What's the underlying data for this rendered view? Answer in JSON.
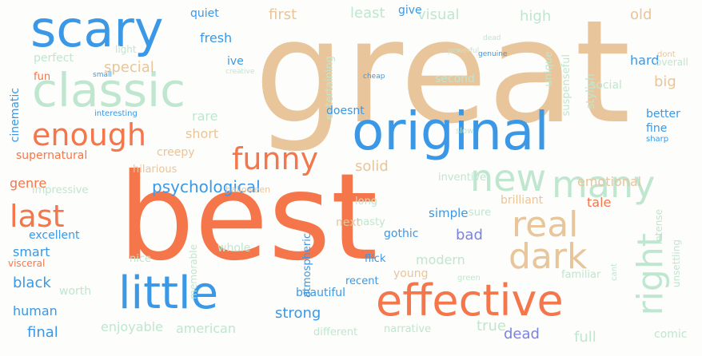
{
  "palette": {
    "tan": "#e8c59a",
    "orange": "#f4764a",
    "blue": "#3a98e6",
    "mint": "#bfe6cf",
    "periwinkle": "#7a83e0"
  },
  "words": [
    {
      "text": "great",
      "color": "tan",
      "weight": 1.0
    },
    {
      "text": "best",
      "color": "orange",
      "weight": 0.95
    },
    {
      "text": "original",
      "color": "blue",
      "weight": 0.55
    },
    {
      "text": "scary",
      "color": "blue",
      "weight": 0.5
    },
    {
      "text": "classic",
      "color": "mint",
      "weight": 0.5
    },
    {
      "text": "little",
      "color": "blue",
      "weight": 0.5
    },
    {
      "text": "effective",
      "color": "orange",
      "weight": 0.5
    },
    {
      "text": "new",
      "color": "mint",
      "weight": 0.4
    },
    {
      "text": "many",
      "color": "mint",
      "weight": 0.4
    },
    {
      "text": "real",
      "color": "tan",
      "weight": 0.4
    },
    {
      "text": "dark",
      "color": "tan",
      "weight": 0.4
    },
    {
      "text": "right",
      "color": "mint",
      "weight": 0.4
    },
    {
      "text": "enough",
      "color": "orange",
      "weight": 0.35
    },
    {
      "text": "funny",
      "color": "orange",
      "weight": 0.35
    },
    {
      "text": "last",
      "color": "orange",
      "weight": 0.35
    },
    {
      "text": "psychological",
      "color": "blue",
      "weight": 0.2
    },
    {
      "text": "first",
      "color": "tan",
      "weight": 0.15
    },
    {
      "text": "least",
      "color": "mint",
      "weight": 0.15
    },
    {
      "text": "visual",
      "color": "mint",
      "weight": 0.15
    },
    {
      "text": "high",
      "color": "mint",
      "weight": 0.15
    },
    {
      "text": "old",
      "color": "tan",
      "weight": 0.15
    },
    {
      "text": "hard",
      "color": "blue",
      "weight": 0.12
    },
    {
      "text": "fresh",
      "color": "blue",
      "weight": 0.12
    },
    {
      "text": "perfect",
      "color": "mint",
      "weight": 0.12
    },
    {
      "text": "special",
      "color": "tan",
      "weight": 0.15
    },
    {
      "text": "fun",
      "color": "orange",
      "weight": 0.1
    },
    {
      "text": "cinematic",
      "color": "blue",
      "weight": 0.1
    },
    {
      "text": "quiet",
      "color": "blue",
      "weight": 0.1
    },
    {
      "text": "give",
      "color": "blue",
      "weight": 0.1
    },
    {
      "text": "ive",
      "color": "blue",
      "weight": 0.1
    },
    {
      "text": "light",
      "color": "mint",
      "weight": 0.08
    },
    {
      "text": "entertaining",
      "color": "mint",
      "weight": 0.1
    },
    {
      "text": "second",
      "color": "mint",
      "weight": 0.1
    },
    {
      "text": "unique",
      "color": "mint",
      "weight": 0.1
    },
    {
      "text": "suspenseful",
      "color": "mint",
      "weight": 0.1
    },
    {
      "text": "stylish",
      "color": "mint",
      "weight": 0.1
    },
    {
      "text": "social",
      "color": "mint",
      "weight": 0.1
    },
    {
      "text": "big",
      "color": "tan",
      "weight": 0.12
    },
    {
      "text": "better",
      "color": "blue",
      "weight": 0.1
    },
    {
      "text": "fine",
      "color": "blue",
      "weight": 0.1
    },
    {
      "text": "sharp",
      "color": "blue",
      "weight": 0.08
    },
    {
      "text": "rare",
      "color": "mint",
      "weight": 0.12
    },
    {
      "text": "short",
      "color": "tan",
      "weight": 0.12
    },
    {
      "text": "creepy",
      "color": "tan",
      "weight": 0.1
    },
    {
      "text": "doesnt",
      "color": "blue",
      "weight": 0.1
    },
    {
      "text": "supernatural",
      "color": "orange",
      "weight": 0.1
    },
    {
      "text": "hilarious",
      "color": "tan",
      "weight": 0.1
    },
    {
      "text": "genre",
      "color": "orange",
      "weight": 0.12
    },
    {
      "text": "solid",
      "color": "tan",
      "weight": 0.12
    },
    {
      "text": "inventive",
      "color": "mint",
      "weight": 0.1
    },
    {
      "text": "emotional",
      "color": "tan",
      "weight": 0.12
    },
    {
      "text": "impressive",
      "color": "mint",
      "weight": 0.1
    },
    {
      "text": "long",
      "color": "mint",
      "weight": 0.1
    },
    {
      "text": "nasty",
      "color": "mint",
      "weight": 0.1
    },
    {
      "text": "halloween",
      "color": "tan",
      "weight": 0.08
    },
    {
      "text": "sure",
      "color": "mint",
      "weight": 0.1
    },
    {
      "text": "brilliant",
      "color": "tan",
      "weight": 0.1
    },
    {
      "text": "tale",
      "color": "orange",
      "weight": 0.1
    },
    {
      "text": "simple",
      "color": "blue",
      "weight": 0.1
    },
    {
      "text": "intense",
      "color": "mint",
      "weight": 0.1
    },
    {
      "text": "excellent",
      "color": "blue",
      "weight": 0.1
    },
    {
      "text": "next",
      "color": "tan",
      "weight": 0.1
    },
    {
      "text": "bad",
      "color": "periwinkle",
      "weight": 0.15
    },
    {
      "text": "smart",
      "color": "blue",
      "weight": 0.12
    },
    {
      "text": "gothic",
      "color": "blue",
      "weight": 0.1
    },
    {
      "text": "modern",
      "color": "mint",
      "weight": 0.12
    },
    {
      "text": "nice",
      "color": "mint",
      "weight": 0.1
    },
    {
      "text": "whole",
      "color": "mint",
      "weight": 0.1
    },
    {
      "text": "flick",
      "color": "blue",
      "weight": 0.1
    },
    {
      "text": "visceral",
      "color": "orange",
      "weight": 0.08
    },
    {
      "text": "black",
      "color": "blue",
      "weight": 0.15
    },
    {
      "text": "memorable",
      "color": "mint",
      "weight": 0.08
    },
    {
      "text": "atmospheric",
      "color": "blue",
      "weight": 0.1
    },
    {
      "text": "recent",
      "color": "blue",
      "weight": 0.1
    },
    {
      "text": "young",
      "color": "tan",
      "weight": 0.1
    },
    {
      "text": "familiar",
      "color": "mint",
      "weight": 0.1
    },
    {
      "text": "unsettling",
      "color": "mint",
      "weight": 0.08
    },
    {
      "text": "human",
      "color": "blue",
      "weight": 0.12
    },
    {
      "text": "worth",
      "color": "mint",
      "weight": 0.1
    },
    {
      "text": "beautiful",
      "color": "blue",
      "weight": 0.1
    },
    {
      "text": "strong",
      "color": "blue",
      "weight": 0.12
    },
    {
      "text": "final",
      "color": "blue",
      "weight": 0.12
    },
    {
      "text": "enjoyable",
      "color": "mint",
      "weight": 0.12
    },
    {
      "text": "american",
      "color": "mint",
      "weight": 0.12
    },
    {
      "text": "different",
      "color": "mint",
      "weight": 0.1
    },
    {
      "text": "narrative",
      "color": "mint",
      "weight": 0.1
    },
    {
      "text": "true",
      "color": "mint",
      "weight": 0.12
    },
    {
      "text": "dead",
      "color": "periwinkle",
      "weight": 0.12
    },
    {
      "text": "full",
      "color": "mint",
      "weight": 0.12
    },
    {
      "text": "comic",
      "color": "mint",
      "weight": 0.1
    },
    {
      "text": "overall",
      "color": "mint",
      "weight": 0.08
    },
    {
      "text": "creative",
      "color": "mint",
      "weight": 0.06
    },
    {
      "text": "cheap",
      "color": "blue",
      "weight": 0.06
    },
    {
      "text": "green",
      "color": "mint",
      "weight": 0.06
    },
    {
      "text": "slow",
      "color": "mint",
      "weight": 0.06
    },
    {
      "text": "dont",
      "color": "tan",
      "weight": 0.06
    },
    {
      "text": "cant",
      "color": "mint",
      "weight": 0.06
    },
    {
      "text": "small",
      "color": "blue",
      "weight": 0.05
    },
    {
      "text": "interesting",
      "color": "blue",
      "weight": 0.05
    },
    {
      "text": "genuine",
      "color": "blue",
      "weight": 0.05
    },
    {
      "text": "powerful",
      "color": "mint",
      "weight": 0.05
    },
    {
      "text": "dead",
      "color": "mint",
      "weight": 0.05
    }
  ]
}
